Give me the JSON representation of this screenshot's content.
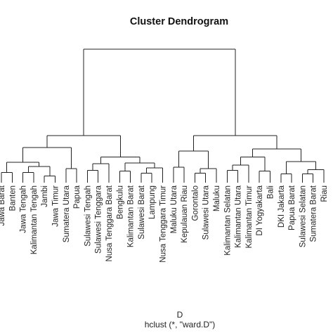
{
  "chart_data": {
    "type": "dendrogram",
    "title": "Cluster Dendrogram",
    "xlabel": "D",
    "sublabel": "hclust (*, \"ward.D\")",
    "ylabel": "",
    "line_color": "#222222",
    "leaves": [
      "Jawa Barat",
      "Banten",
      "Jawa Tengah",
      "Kalimantan Tengah",
      "Jambi",
      "Jawa Timur",
      "Sumatera Utara",
      "Papua",
      "Sulawesi Tengah",
      "Sulawesi Tenggara",
      "Nusa Tenggara Barat",
      "Bengkulu",
      "Kalimantan Barat",
      "Sulawesi Barat",
      "Lampung",
      "Nusa Tenggara Timur",
      "Maluku Utara",
      "Kepulauan Riau",
      "Gorontalo",
      "Sulawesi Utara",
      "Maluku",
      "Kalimantan Selatan",
      "Kalimantan Utara",
      "Kalimantan Timur",
      "DI Yogyakarta",
      "Bali",
      "DKI Jakarta",
      "Papua Barat",
      "Sulawesi Selatan",
      "Sumatera Barat",
      "Riau"
    ],
    "merges": [
      {
        "id": "c1",
        "left": "Jawa Barat",
        "right": "Banten",
        "height": 1.2
      },
      {
        "id": "c2",
        "left": "Jawa Tengah",
        "right": "Kalimantan Tengah",
        "height": 1.2
      },
      {
        "id": "c3",
        "left": "Jambi",
        "right": "Jawa Timur",
        "height": 0.7
      },
      {
        "id": "c4",
        "left": "c2",
        "right": "c3",
        "height": 2.0
      },
      {
        "id": "c5",
        "left": "c1",
        "right": "c4",
        "height": 2.6
      },
      {
        "id": "c6",
        "left": "Sumatera Utara",
        "right": "Papua",
        "height": 1.7
      },
      {
        "id": "c7",
        "left": "c5",
        "right": "c6",
        "height": 4.6
      },
      {
        "id": "c8",
        "left": "Sulawesi Tengah",
        "right": "Sulawesi Tenggara",
        "height": 1.5
      },
      {
        "id": "c9",
        "left": "c8",
        "right": "Nusa Tenggara Barat",
        "height": 2.4
      },
      {
        "id": "c10",
        "left": "Bengkulu",
        "right": "Kalimantan Barat",
        "height": 1.4
      },
      {
        "id": "c11",
        "left": "Sulawesi Barat",
        "right": "Lampung",
        "height": 1.1
      },
      {
        "id": "c12",
        "left": "c11",
        "right": "Nusa Tenggara Timur",
        "height": 1.8
      },
      {
        "id": "c13",
        "left": "c10",
        "right": "c12",
        "height": 2.5
      },
      {
        "id": "c14",
        "left": "c9",
        "right": "c13",
        "height": 3.3
      },
      {
        "id": "c15",
        "left": "c7",
        "right": "c14",
        "height": 6.2
      },
      {
        "id": "c16",
        "left": "Maluku Utara",
        "right": "Kepulauan Riau",
        "height": 1.9
      },
      {
        "id": "c17",
        "left": "Gorontalo",
        "right": "Sulawesi Utara",
        "height": 1.1
      },
      {
        "id": "c18",
        "left": "c17",
        "right": "Maluku",
        "height": 1.7
      },
      {
        "id": "c19",
        "left": "c16",
        "right": "c18",
        "height": 4.1
      },
      {
        "id": "c20",
        "left": "Kalimantan Selatan",
        "right": "Kalimantan Utara",
        "height": 1.5
      },
      {
        "id": "c21",
        "left": "c20",
        "right": "Kalimantan Timur",
        "height": 2.2
      },
      {
        "id": "c22",
        "left": "DI Yogyakarta",
        "right": "Bali",
        "height": 1.4
      },
      {
        "id": "c23",
        "left": "c21",
        "right": "c22",
        "height": 3.3
      },
      {
        "id": "c24",
        "left": "DKI Jakarta",
        "right": "Papua Barat",
        "height": 1.0
      },
      {
        "id": "c25",
        "left": "Sulawesi Selatan",
        "right": "Sumatera Barat",
        "height": 1.0
      },
      {
        "id": "c26",
        "left": "c25",
        "right": "Riau",
        "height": 1.6
      },
      {
        "id": "c27",
        "left": "c24",
        "right": "c26",
        "height": 2.7
      },
      {
        "id": "c28",
        "left": "c23",
        "right": "c27",
        "height": 4.4
      },
      {
        "id": "c29",
        "left": "c19",
        "right": "c28",
        "height": 6.2
      },
      {
        "id": "c30",
        "left": "c29",
        "right": "c29b",
        "height": 0
      },
      {
        "id": "root",
        "left": "c15",
        "right": "c29",
        "height": 18.0
      }
    ]
  }
}
